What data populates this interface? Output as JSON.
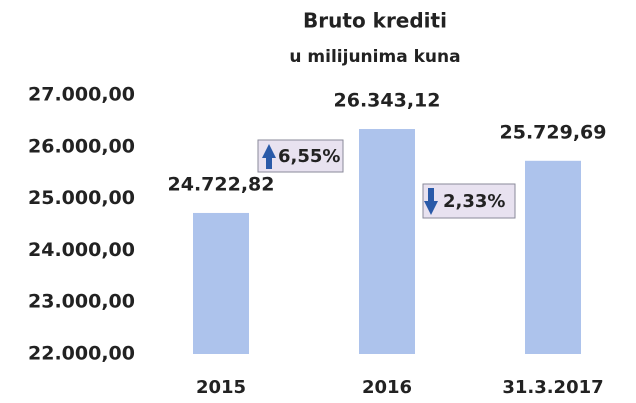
{
  "chart_data": {
    "type": "bar",
    "title": "Bruto krediti",
    "subtitle": "u milijunima kuna",
    "categories": [
      "2015",
      "2016",
      "31.3.2017"
    ],
    "values": [
      24722.82,
      26343.12,
      25729.69
    ],
    "value_labels": [
      "24.722,82",
      "26.343,12",
      "25.729,69"
    ],
    "color": "#adc3ec",
    "ylim": [
      22000,
      27000
    ],
    "yticks": [
      {
        "value": 22000,
        "label": "22.000,00"
      },
      {
        "value": 23000,
        "label": "23.000,00"
      },
      {
        "value": 24000,
        "label": "24.000,00"
      },
      {
        "value": 25000,
        "label": "25.000,00"
      },
      {
        "value": 26000,
        "label": "26.000,00"
      },
      {
        "value": 27000,
        "label": "27.000,00"
      }
    ],
    "grid": false,
    "annotations": [
      "6,55%",
      "2,33%"
    ]
  }
}
